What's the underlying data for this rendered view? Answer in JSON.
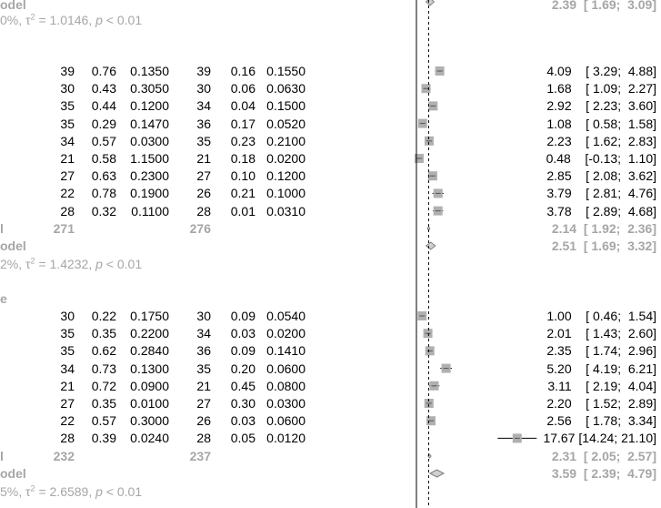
{
  "chart_data": {
    "type": "forest",
    "x_axis": {
      "ref_line": 0,
      "dashed_line": 2.14,
      "min": -0.3,
      "max": 17.9
    },
    "top": {
      "model_label": "odel",
      "summary_ci": "2.39  [ 1.69;  3.09]",
      "summary": {
        "est": 2.39,
        "lo": 1.69,
        "hi": 3.09
      },
      "hetero": "0%, τ² = 1.0146, p < 0.01"
    },
    "subgroups": [
      {
        "rows": [
          {
            "n1": "39",
            "m1": "0.76",
            "s1": "0.1350",
            "n2": "39",
            "m2": "0.16",
            "s2": "0.1550",
            "ci": "4.09    [ 3.29;  4.88]",
            "est": 4.09,
            "lo": 3.29,
            "hi": 4.88
          },
          {
            "n1": "30",
            "m1": "0.43",
            "s1": "0.3050",
            "n2": "30",
            "m2": "0.06",
            "s2": "0.0630",
            "ci": "1.68    [ 1.09;  2.27]",
            "est": 1.68,
            "lo": 1.09,
            "hi": 2.27
          },
          {
            "n1": "35",
            "m1": "0.44",
            "s1": "0.1200",
            "n2": "34",
            "m2": "0.04",
            "s2": "0.1500",
            "ci": "2.92    [ 2.23;  3.60]",
            "est": 2.92,
            "lo": 2.23,
            "hi": 3.6
          },
          {
            "n1": "35",
            "m1": "0.29",
            "s1": "0.1470",
            "n2": "36",
            "m2": "0.17",
            "s2": "0.0520",
            "ci": "1.08    [ 0.58;  1.58]",
            "est": 1.08,
            "lo": 0.58,
            "hi": 1.58
          },
          {
            "n1": "34",
            "m1": "0.57",
            "s1": "0.0300",
            "n2": "35",
            "m2": "0.23",
            "s2": "0.2100",
            "ci": "2.23    [ 1.62;  2.83]",
            "est": 2.23,
            "lo": 1.62,
            "hi": 2.83
          },
          {
            "n1": "21",
            "m1": "0.58",
            "s1": "1.1500",
            "n2": "21",
            "m2": "0.18",
            "s2": "0.0200",
            "ci": "0.48    [-0.13;  1.10]",
            "est": 0.48,
            "lo": -0.13,
            "hi": 1.1
          },
          {
            "n1": "27",
            "m1": "0.63",
            "s1": "0.2300",
            "n2": "27",
            "m2": "0.10",
            "s2": "0.1200",
            "ci": "2.85    [ 2.08;  3.62]",
            "est": 2.85,
            "lo": 2.08,
            "hi": 3.62
          },
          {
            "n1": "22",
            "m1": "0.78",
            "s1": "0.1900",
            "n2": "26",
            "m2": "0.21",
            "s2": "0.1000",
            "ci": "3.79    [ 2.81;  4.76]",
            "est": 3.79,
            "lo": 2.81,
            "hi": 4.76
          },
          {
            "n1": "28",
            "m1": "0.32",
            "s1": "0.1100",
            "n2": "28",
            "m2": "0.01",
            "s2": "0.0310",
            "ci": "3.78    [ 2.89;  4.68]",
            "est": 3.78,
            "lo": 2.89,
            "hi": 4.68
          }
        ],
        "fixed": {
          "label": "l",
          "n1": "271",
          "n2": "276",
          "ci": "2.14  [ 1.92;  2.36]",
          "est": 2.14,
          "lo": 1.92,
          "hi": 2.36
        },
        "random": {
          "label": "odel",
          "ci": "2.51  [ 1.69;  3.32]",
          "est": 2.51,
          "lo": 1.69,
          "hi": 3.32
        },
        "hetero": "2%, τ² = 1.4232, p < 0.01"
      },
      {
        "header": "e",
        "rows": [
          {
            "n1": "30",
            "m1": "0.22",
            "s1": "0.1750",
            "n2": "30",
            "m2": "0.09",
            "s2": "0.0540",
            "ci": "1.00    [ 0.46;  1.54]",
            "est": 1.0,
            "lo": 0.46,
            "hi": 1.54
          },
          {
            "n1": "35",
            "m1": "0.35",
            "s1": "0.2200",
            "n2": "34",
            "m2": "0.03",
            "s2": "0.0200",
            "ci": "2.01    [ 1.43;  2.60]",
            "est": 2.01,
            "lo": 1.43,
            "hi": 2.6
          },
          {
            "n1": "35",
            "m1": "0.62",
            "s1": "0.2840",
            "n2": "36",
            "m2": "0.09",
            "s2": "0.1410",
            "ci": "2.35    [ 1.74;  2.96]",
            "est": 2.35,
            "lo": 1.74,
            "hi": 2.96
          },
          {
            "n1": "34",
            "m1": "0.73",
            "s1": "0.1300",
            "n2": "35",
            "m2": "0.20",
            "s2": "0.0600",
            "ci": "5.20    [ 4.19;  6.21]",
            "est": 5.2,
            "lo": 4.19,
            "hi": 6.21
          },
          {
            "n1": "21",
            "m1": "0.72",
            "s1": "0.0900",
            "n2": "21",
            "m2": "0.45",
            "s2": "0.0800",
            "ci": "3.11    [ 2.19;  4.04]",
            "est": 3.11,
            "lo": 2.19,
            "hi": 4.04
          },
          {
            "n1": "27",
            "m1": "0.35",
            "s1": "0.0100",
            "n2": "27",
            "m2": "0.30",
            "s2": "0.0300",
            "ci": "2.20    [ 1.52;  2.89]",
            "est": 2.2,
            "lo": 1.52,
            "hi": 2.89
          },
          {
            "n1": "22",
            "m1": "0.57",
            "s1": "0.3000",
            "n2": "26",
            "m2": "0.03",
            "s2": "0.0600",
            "ci": "2.56    [ 1.78;  3.34]",
            "est": 2.56,
            "lo": 1.78,
            "hi": 3.34
          },
          {
            "n1": "28",
            "m1": "0.39",
            "s1": "0.0240",
            "n2": "28",
            "m2": "0.05",
            "s2": "0.0120",
            "ci": "17.67 [14.24; 21.10]",
            "est": 17.67,
            "lo": 14.24,
            "hi": 21.1
          }
        ],
        "fixed": {
          "label": "l",
          "n1": "232",
          "n2": "237",
          "ci": "2.31  [ 2.05;  2.57]",
          "est": 2.31,
          "lo": 2.05,
          "hi": 2.57
        },
        "random": {
          "label": "odel",
          "ci": "3.59  [ 2.39;  4.79]",
          "est": 3.59,
          "lo": 2.39,
          "hi": 4.79
        },
        "hetero": "5%, τ² = 2.6589, p < 0.01"
      }
    ],
    "colors": {
      "text": "#000000",
      "summary": "#a6a6a6",
      "box": "#b0b0b0"
    }
  }
}
